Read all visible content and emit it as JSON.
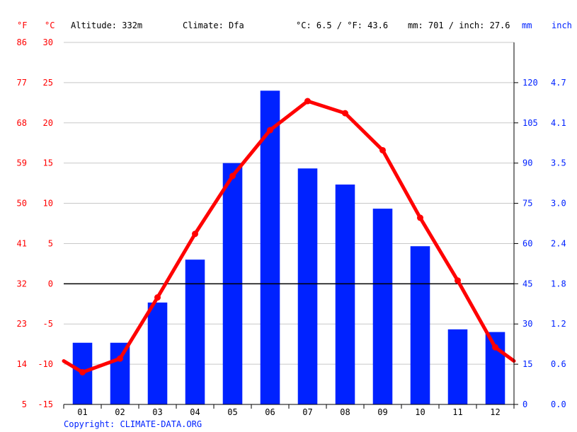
{
  "header": {
    "f_unit": "°F",
    "c_unit": "°C",
    "altitude": "Altitude: 332m",
    "climate": "Climate: Dfa",
    "temp_avg": "°C: 6.5 / °F: 43.6",
    "precip_total": "mm: 701 / inch: 27.6",
    "mm_unit": "mm",
    "inch_unit": "inch"
  },
  "footer": {
    "copyright": "Copyright: CLIMATE-DATA.ORG"
  },
  "colors": {
    "temperature": "#ff0000",
    "precipitation": "#0022ff",
    "grid": "#c8c8c8",
    "zero_line": "#000000"
  },
  "chart_data": {
    "type": "bar+line",
    "categories": [
      "01",
      "02",
      "03",
      "04",
      "05",
      "06",
      "07",
      "08",
      "09",
      "10",
      "11",
      "12"
    ],
    "series": [
      {
        "kind": "bar",
        "axis": "right",
        "values": [
          23,
          23,
          38,
          54,
          90,
          117,
          88,
          82,
          73,
          59,
          28,
          27
        ]
      },
      {
        "kind": "line",
        "axis": "left",
        "values": [
          -11,
          -9.3,
          -1.7,
          6.2,
          13.4,
          19.1,
          22.7,
          21.2,
          16.6,
          8.2,
          0.4,
          -7.9
        ]
      }
    ],
    "temp_extension": {
      "start": -9.6,
      "end": -9.6
    },
    "left_axis": {
      "c_ticks": [
        "30",
        "25",
        "20",
        "15",
        "10",
        "5",
        "0",
        "-5",
        "-10",
        "-15"
      ],
      "f_ticks": [
        "86",
        "77",
        "68",
        "59",
        "50",
        "41",
        "32",
        "23",
        "14",
        "5"
      ],
      "range_c": [
        -15,
        30
      ]
    },
    "right_axis": {
      "mm_ticks": [
        "120",
        "105",
        "90",
        "75",
        "60",
        "45",
        "30",
        "15",
        "0"
      ],
      "inch_ticks": [
        "4.7",
        "4.1",
        "3.5",
        "3.0",
        "2.4",
        "1.8",
        "1.2",
        "0.6",
        "0.0"
      ],
      "range_mm": [
        0,
        135
      ]
    },
    "grid": true
  }
}
